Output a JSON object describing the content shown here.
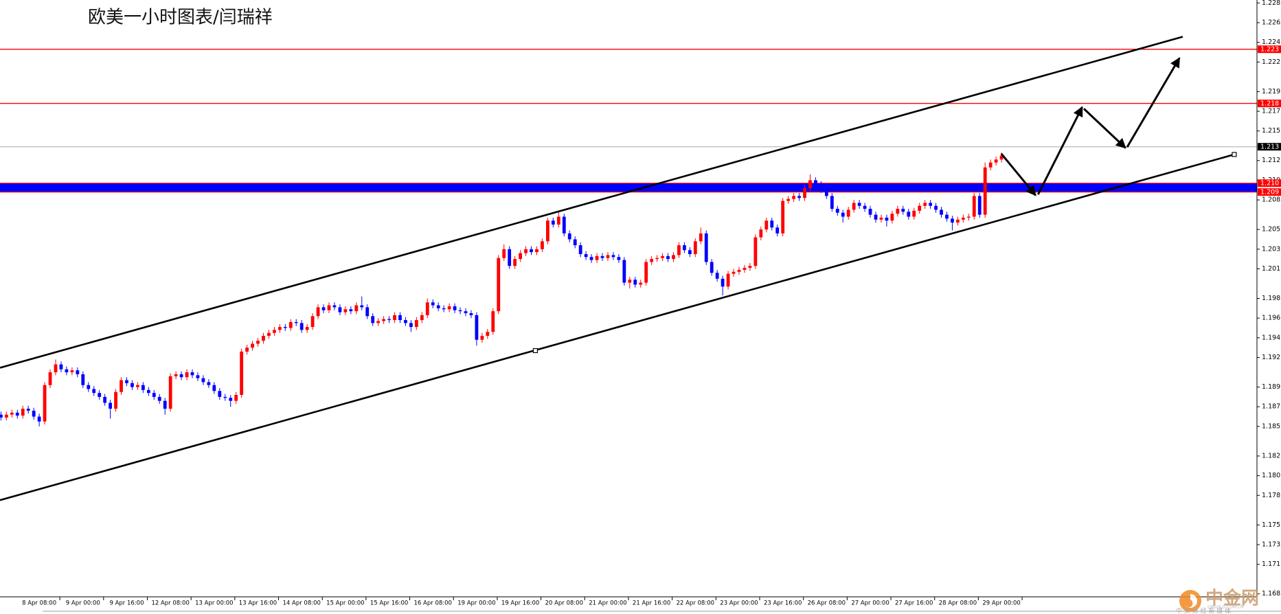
{
  "chart_data": {
    "type": "candlestick",
    "title": "欧美一小时图表/闫瑞祥",
    "categories": [
      null,
      null,
      null,
      null,
      null,
      null,
      null,
      "8 Apr 08:00",
      null,
      null,
      null,
      null,
      null,
      null,
      null,
      "9 Apr 00:00",
      null,
      null,
      null,
      null,
      null,
      null,
      null,
      "9 Apr 16:00",
      null,
      null,
      null,
      null,
      null,
      null,
      null,
      "12 Apr 08:00",
      null,
      null,
      null,
      null,
      null,
      null,
      null,
      "13 Apr 00:00",
      null,
      null,
      null,
      null,
      null,
      null,
      null,
      "13 Apr 16:00",
      null,
      null,
      null,
      null,
      null,
      null,
      null,
      "14 Apr 08:00",
      null,
      null,
      null,
      null,
      null,
      null,
      null,
      "15 Apr 00:00",
      null,
      null,
      null,
      null,
      null,
      null,
      null,
      "15 Apr 16:00",
      null,
      null,
      null,
      null,
      null,
      null,
      null,
      "16 Apr 08:00",
      null,
      null,
      null,
      null,
      null,
      null,
      null,
      "19 Apr 00:00",
      null,
      null,
      null,
      null,
      null,
      null,
      null,
      "19 Apr 16:00",
      null,
      null,
      null,
      null,
      null,
      null,
      null,
      "20 Apr 08:00",
      null,
      null,
      null,
      null,
      null,
      null,
      null,
      "21 Apr 00:00",
      null,
      null,
      null,
      null,
      null,
      null,
      null,
      "21 Apr 16:00",
      null,
      null,
      null,
      null,
      null,
      null,
      null,
      "22 Apr 08:00",
      null,
      null,
      null,
      null,
      null,
      null,
      null,
      "23 Apr 00:00",
      null,
      null,
      null,
      null,
      null,
      null,
      null,
      "23 Apr 16:00",
      null,
      null,
      null,
      null,
      null,
      null,
      null,
      "26 Apr 08:00",
      null,
      null,
      null,
      null,
      null,
      null,
      null,
      "27 Apr 00:00",
      null,
      null,
      null,
      null,
      null,
      null,
      null,
      "27 Apr 16:00",
      null,
      null,
      null,
      null,
      null,
      null,
      null,
      "28 Apr 08:00",
      null,
      null,
      null,
      null,
      null,
      null,
      null,
      "29 Apr 00:00"
    ],
    "open": [
      1.1862,
      1.1859,
      1.1862,
      1.1864,
      1.1861,
      1.1868,
      1.1866,
      1.186,
      1.1855,
      1.1892,
      1.1905,
      1.1913,
      1.1908,
      1.1905,
      1.1907,
      1.1903,
      1.1892,
      1.1888,
      1.1884,
      1.188,
      1.1874,
      1.1868,
      1.1885,
      1.1897,
      1.1894,
      1.189,
      1.1892,
      1.1887,
      1.1884,
      1.188,
      1.1876,
      1.1868,
      1.1901,
      1.1903,
      1.19,
      1.1905,
      1.1902,
      1.1899,
      1.1895,
      1.1892,
      1.1886,
      1.188,
      1.1879,
      1.1876,
      1.1882,
      1.1926,
      1.193,
      1.1934,
      1.1937,
      1.1942,
      1.1945,
      1.1948,
      1.1951,
      1.195,
      1.1956,
      1.1955,
      1.1948,
      1.1951,
      1.1962,
      1.1971,
      1.1968,
      1.1973,
      1.1971,
      1.1966,
      1.1969,
      1.1967,
      1.1973,
      1.1971,
      1.1962,
      1.1955,
      1.1957,
      1.1959,
      1.1958,
      1.1963,
      1.1958,
      1.1955,
      1.1951,
      1.1958,
      1.1963,
      1.1976,
      1.1973,
      1.197,
      1.1969,
      1.1972,
      1.1968,
      1.1967,
      1.1965,
      1.1963,
      1.1938,
      1.1942,
      1.1946,
      1.1967,
      1.2021,
      1.203,
      1.2013,
      1.202,
      1.2026,
      1.203,
      1.2027,
      1.203,
      1.2038,
      1.2059,
      1.2055,
      1.2063,
      1.2046,
      1.204,
      1.2034,
      1.2025,
      1.2022,
      1.2019,
      1.2023,
      1.2021,
      1.2024,
      1.2022,
      1.2019,
      1.1996,
      1.1999,
      1.1994,
      1.1996,
      1.2017,
      1.202,
      1.2021,
      1.2023,
      1.202,
      1.2024,
      1.2034,
      1.2029,
      1.2025,
      1.2038,
      1.2046,
      1.2017,
      1.2006,
      1.2,
      1.1992,
      1.2005,
      1.2007,
      1.2009,
      1.2011,
      1.2013,
      1.2042,
      1.205,
      1.2059,
      1.2052,
      1.2046,
      1.2079,
      1.2081,
      1.2084,
      1.2082,
      1.2092,
      1.21,
      1.2096,
      1.209,
      1.2084,
      1.2071,
      1.2067,
      1.2063,
      1.207,
      1.2077,
      1.2074,
      1.2071,
      1.2065,
      1.206,
      1.2062,
      1.2059,
      1.2066,
      1.2071,
      1.2068,
      1.2063,
      1.2069,
      1.2074,
      1.2077,
      1.2074,
      1.207,
      1.2065,
      1.2061,
      1.2057,
      1.206,
      1.2062,
      1.2063,
      1.2084,
      1.2065,
      1.2113,
      1.2118,
      1.2121
    ],
    "high": [
      1.1865,
      1.1865,
      1.1867,
      1.1867,
      1.1871,
      1.1871,
      1.1869,
      1.1863,
      1.1895,
      1.1908,
      1.1918,
      1.1916,
      1.1911,
      1.191,
      1.191,
      1.1906,
      1.1895,
      1.1891,
      1.1887,
      1.1883,
      1.1877,
      1.1888,
      1.19,
      1.19,
      1.1897,
      1.1895,
      1.1895,
      1.189,
      1.1887,
      1.1883,
      1.1879,
      1.1904,
      1.1906,
      1.1906,
      1.1908,
      1.1908,
      1.1905,
      1.1902,
      1.1898,
      1.1895,
      1.1889,
      1.1883,
      1.1882,
      1.1885,
      1.1929,
      1.1933,
      1.1937,
      1.194,
      1.1945,
      1.1948,
      1.1951,
      1.1954,
      1.1954,
      1.1959,
      1.1959,
      1.1958,
      1.1954,
      1.1965,
      1.1974,
      1.1974,
      1.1976,
      1.1976,
      1.1974,
      1.1972,
      1.1972,
      1.1976,
      1.1982,
      1.1974,
      1.1965,
      1.196,
      1.1962,
      1.1962,
      1.1966,
      1.1966,
      1.1961,
      1.1958,
      1.1961,
      1.1966,
      1.198,
      1.1979,
      1.1976,
      1.1973,
      1.1975,
      1.1975,
      1.1971,
      1.197,
      1.1968,
      1.1966,
      1.1945,
      1.1949,
      1.197,
      1.2024,
      1.2035,
      1.2033,
      1.2023,
      1.2029,
      1.2033,
      1.2033,
      1.2033,
      1.2041,
      1.2062,
      1.2062,
      1.2068,
      1.2066,
      1.2049,
      1.2043,
      1.2037,
      1.2028,
      1.2025,
      1.2026,
      1.2026,
      1.2027,
      1.2027,
      1.2025,
      1.2022,
      1.2002,
      1.2002,
      1.1999,
      1.202,
      1.2023,
      1.2024,
      1.2026,
      1.2026,
      1.2027,
      1.2037,
      1.2037,
      1.2032,
      1.2041,
      1.2052,
      1.2049,
      1.202,
      1.2009,
      1.2003,
      1.2008,
      1.201,
      1.2012,
      1.2014,
      1.2016,
      1.2045,
      1.2053,
      1.2062,
      1.2062,
      1.2055,
      1.2082,
      1.2084,
      1.2087,
      1.2087,
      1.2095,
      1.2106,
      1.2103,
      1.2099,
      1.2093,
      1.2087,
      1.2074,
      1.207,
      1.2073,
      1.208,
      1.208,
      1.2077,
      1.2074,
      1.2068,
      1.2065,
      1.2065,
      1.2069,
      1.2074,
      1.2074,
      1.2071,
      1.2072,
      1.2077,
      1.208,
      1.208,
      1.2077,
      1.2073,
      1.2068,
      1.2064,
      1.2063,
      1.2065,
      1.2066,
      1.2087,
      1.2087,
      1.2118,
      1.2121,
      1.2124,
      1.2128
    ],
    "low": [
      1.1856,
      1.1856,
      1.1859,
      1.1858,
      1.1858,
      1.1863,
      1.1857,
      1.185,
      1.1852,
      1.1889,
      1.1902,
      1.1905,
      1.1902,
      1.1902,
      1.19,
      1.1889,
      1.1885,
      1.1881,
      1.1877,
      1.1871,
      1.1858,
      1.1865,
      1.1882,
      1.1891,
      1.1887,
      1.1887,
      1.1884,
      1.1881,
      1.1877,
      1.1873,
      1.1862,
      1.1865,
      1.1898,
      1.1897,
      1.1897,
      1.1899,
      1.1896,
      1.1892,
      1.1889,
      1.1883,
      1.1877,
      1.1876,
      1.187,
      1.1873,
      1.1879,
      1.1923,
      1.1927,
      1.1931,
      1.1934,
      1.1939,
      1.1942,
      1.1945,
      1.1947,
      1.1947,
      1.1952,
      1.1945,
      1.1945,
      1.1948,
      1.1959,
      1.1965,
      1.1965,
      1.1968,
      1.1963,
      1.1963,
      1.1964,
      1.1964,
      1.1968,
      1.1959,
      1.1952,
      1.1952,
      1.1954,
      1.1955,
      1.1955,
      1.1955,
      1.1952,
      1.1946,
      1.1948,
      1.1955,
      1.196,
      1.197,
      1.1967,
      1.1966,
      1.1966,
      1.1965,
      1.1964,
      1.1962,
      1.196,
      1.1932,
      1.1935,
      1.1939,
      1.1943,
      1.1964,
      1.2018,
      1.201,
      1.201,
      1.2017,
      1.2023,
      1.2024,
      1.2024,
      1.2027,
      1.2035,
      1.2052,
      1.2052,
      1.2043,
      1.2037,
      1.2031,
      1.2022,
      1.2019,
      1.2016,
      1.2016,
      1.2018,
      1.2018,
      1.2019,
      1.2016,
      1.1993,
      1.199,
      1.1991,
      1.1991,
      1.1993,
      1.2014,
      1.2017,
      1.2018,
      1.2017,
      1.2017,
      1.2021,
      1.2026,
      1.2022,
      1.2022,
      1.2035,
      1.2014,
      1.2003,
      1.1997,
      1.1983,
      1.1989,
      1.2002,
      1.2004,
      1.2006,
      1.2008,
      1.201,
      1.2039,
      1.2047,
      1.2049,
      1.2043,
      1.2043,
      1.2076,
      1.2078,
      1.2079,
      1.2079,
      1.2089,
      1.2093,
      1.2087,
      1.2081,
      1.2068,
      1.2064,
      1.2057,
      1.206,
      1.2067,
      1.2071,
      1.2068,
      1.2062,
      1.2057,
      1.2057,
      1.2053,
      1.2056,
      1.2063,
      1.2065,
      1.206,
      1.206,
      1.2066,
      1.2071,
      1.2071,
      1.2067,
      1.2062,
      1.2058,
      1.2049,
      1.2054,
      1.2057,
      1.2059,
      1.206,
      1.2062,
      1.2062,
      1.211,
      1.2115,
      1.2118
    ],
    "close": [
      1.1859,
      1.1862,
      1.1864,
      1.1861,
      1.1868,
      1.1866,
      1.186,
      1.1855,
      1.1892,
      1.1905,
      1.1913,
      1.1908,
      1.1905,
      1.1907,
      1.1903,
      1.1892,
      1.1888,
      1.1884,
      1.188,
      1.1874,
      1.1868,
      1.1885,
      1.1897,
      1.1894,
      1.189,
      1.1892,
      1.1887,
      1.1884,
      1.188,
      1.1876,
      1.1868,
      1.1901,
      1.1903,
      1.19,
      1.1905,
      1.1902,
      1.1899,
      1.1895,
      1.1892,
      1.1886,
      1.188,
      1.1879,
      1.1876,
      1.1882,
      1.1926,
      1.193,
      1.1934,
      1.1937,
      1.1942,
      1.1945,
      1.1948,
      1.1951,
      1.195,
      1.1956,
      1.1955,
      1.1948,
      1.1951,
      1.1962,
      1.1971,
      1.1968,
      1.1973,
      1.1971,
      1.1966,
      1.1969,
      1.1967,
      1.1973,
      1.1971,
      1.1962,
      1.1955,
      1.1957,
      1.1959,
      1.1958,
      1.1963,
      1.1958,
      1.1955,
      1.1951,
      1.1958,
      1.1963,
      1.1976,
      1.1973,
      1.197,
      1.1969,
      1.1972,
      1.1968,
      1.1967,
      1.1965,
      1.1963,
      1.1938,
      1.1942,
      1.1946,
      1.1967,
      1.2021,
      1.203,
      1.2013,
      1.202,
      1.2026,
      1.203,
      1.2027,
      1.203,
      1.2038,
      1.2059,
      1.2055,
      1.2063,
      1.2046,
      1.204,
      1.2034,
      1.2025,
      1.2022,
      1.2019,
      1.2023,
      1.2021,
      1.2024,
      1.2022,
      1.2019,
      1.1996,
      1.1999,
      1.1994,
      1.1996,
      1.2017,
      1.202,
      1.2021,
      1.2023,
      1.202,
      1.2024,
      1.2034,
      1.2029,
      1.2025,
      1.2038,
      1.2046,
      1.2017,
      1.2006,
      1.2,
      1.1992,
      1.2005,
      1.2007,
      1.2009,
      1.2011,
      1.2013,
      1.2042,
      1.205,
      1.2059,
      1.2052,
      1.2046,
      1.2079,
      1.2081,
      1.2084,
      1.2082,
      1.2092,
      1.21,
      1.2096,
      1.209,
      1.2084,
      1.2071,
      1.2067,
      1.2063,
      1.207,
      1.2077,
      1.2074,
      1.2071,
      1.2065,
      1.206,
      1.2062,
      1.2059,
      1.2066,
      1.2071,
      1.2068,
      1.2063,
      1.2069,
      1.2074,
      1.2077,
      1.2074,
      1.207,
      1.2065,
      1.2061,
      1.2057,
      1.206,
      1.2062,
      1.2063,
      1.2084,
      1.2065,
      1.2113,
      1.2118,
      1.2121,
      1.2125
    ],
    "up_color": "#ff0000",
    "down_color": "#0000ff",
    "ylim": [
      1.1677,
      1.2283
    ],
    "yticks": [
      1.228,
      1.226,
      1.224,
      1.222,
      1.219,
      1.217,
      1.215,
      1.212,
      {
        "value": 1.21,
        "label": "1.210"
      },
      1.208,
      1.205,
      1.203,
      1.201,
      1.198,
      1.196,
      1.194,
      1.192,
      1.189,
      1.187,
      1.185,
      1.182,
      {
        "value": 1.18,
        "label": "1.180"
      },
      1.178,
      1.175,
      1.173,
      1.171,
      1.168
    ],
    "levels": [
      {
        "value": 1.2233,
        "label": "1.223",
        "line_color": "#ff0000",
        "tag_color": "#ff0000"
      },
      {
        "value": 1.2178,
        "label": "1.218",
        "line_color": "#ff0000",
        "tag_color": "#ff0000"
      },
      {
        "value": 1.2134,
        "label": "1.213",
        "line_color": "#c0c0c0",
        "tag_color": "#000000"
      }
    ],
    "zone": {
      "low": 1.2088,
      "high": 1.2097,
      "low_label": "1.209",
      "high_label": "1.210",
      "fill": "#0000ff",
      "edge": "#ff0000"
    },
    "watermark": {
      "brand": "中金网",
      "site": "CNGOLD.COM.CN",
      "slogan": "中 文 财 经 新 媒 体"
    }
  }
}
